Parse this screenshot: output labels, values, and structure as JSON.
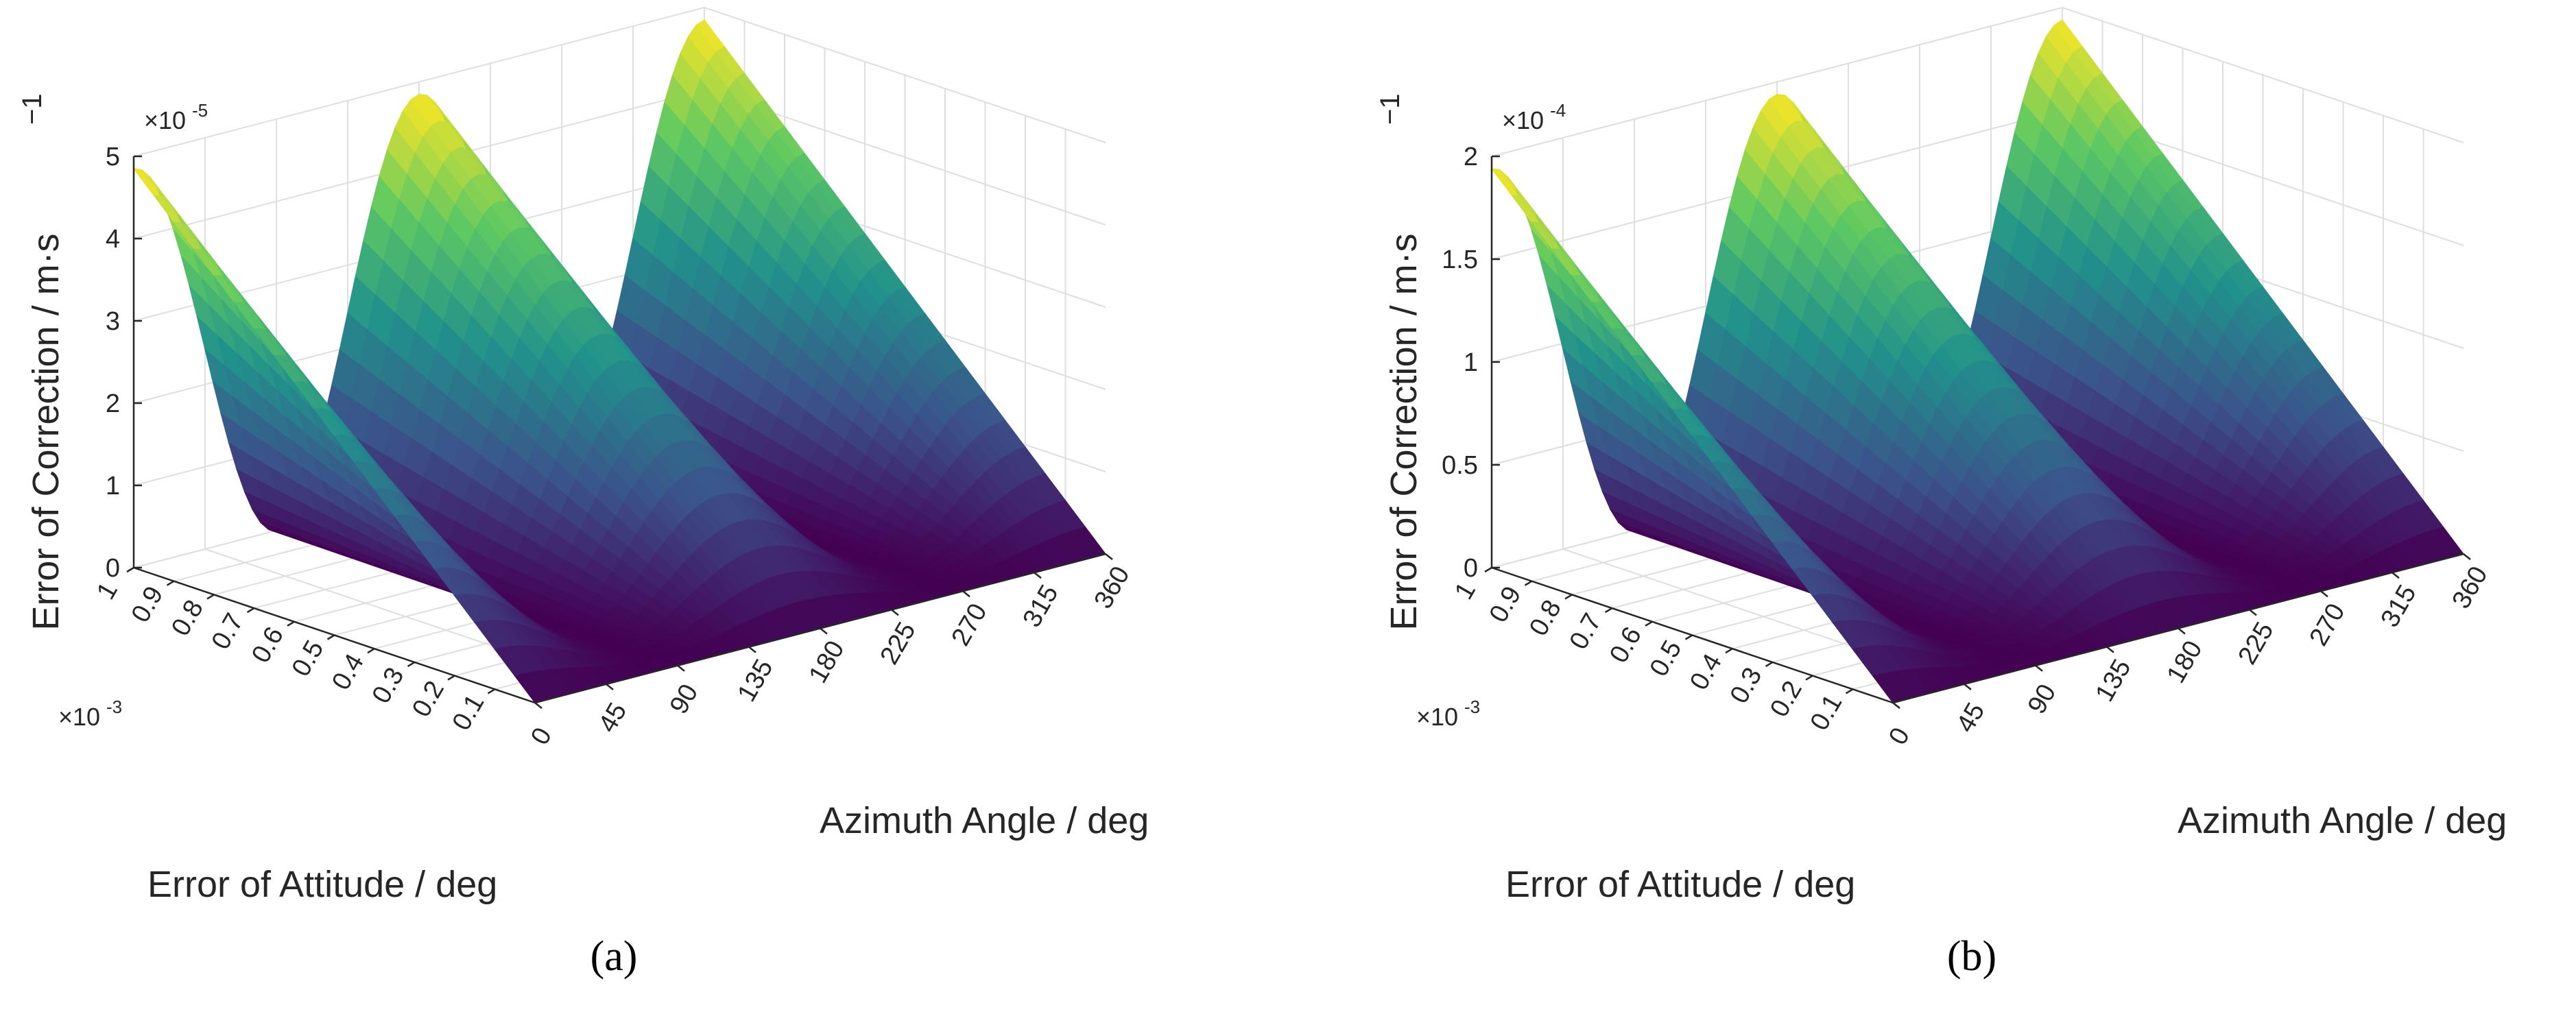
{
  "colormap": [
    "#440154",
    "#3b528b",
    "#21918c",
    "#5ec962",
    "#fde725"
  ],
  "chart_data": [
    {
      "type": "surface",
      "panel_label": "(a)",
      "xlabel": "Azimuth Angle / deg",
      "ylabel": "Error of Attitude / deg",
      "zlabel": "Error of Correction / m·s",
      "zlabel_exp": "−1",
      "x_ticks": [
        "0",
        "45",
        "90",
        "135",
        "180",
        "225",
        "270",
        "315",
        "360"
      ],
      "y_ticks": [
        "0.1",
        "0.2",
        "0.3",
        "0.4",
        "0.5",
        "0.6",
        "0.7",
        "0.8",
        "0.9",
        "1"
      ],
      "y_multiplier": "×10",
      "y_multiplier_exp": "-3",
      "z_ticks": [
        "0",
        "1",
        "2",
        "3",
        "4",
        "5"
      ],
      "z_multiplier": "×10",
      "z_multiplier_exp": "-5",
      "xlim": [
        0,
        360
      ],
      "ylim": [
        0,
        0.001
      ],
      "zlim": [
        0,
        5e-05
      ],
      "zmax": 4.85e-05,
      "function": "z = zmax · (y / 0.001) · (0.5 + 0.5·cos(2·azimuth))",
      "grid": true
    },
    {
      "type": "surface",
      "panel_label": "(b)",
      "xlabel": "Azimuth Angle / deg",
      "ylabel": "Error of Attitude / deg",
      "zlabel": "Error of Correction / m·s",
      "zlabel_exp": "−1",
      "x_ticks": [
        "0",
        "45",
        "90",
        "135",
        "180",
        "225",
        "270",
        "315",
        "360"
      ],
      "y_ticks": [
        "0.1",
        "0.2",
        "0.3",
        "0.4",
        "0.5",
        "0.6",
        "0.7",
        "0.8",
        "0.9",
        "1"
      ],
      "y_multiplier": "×10",
      "y_multiplier_exp": "-3",
      "z_ticks": [
        "0",
        "0.5",
        "1",
        "1.5",
        "2"
      ],
      "z_multiplier": "×10",
      "z_multiplier_exp": "-4",
      "xlim": [
        0,
        360
      ],
      "ylim": [
        0,
        0.001
      ],
      "zlim": [
        0,
        0.0002
      ],
      "zmax": 0.000194,
      "function": "z = zmax · (y / 0.001) · (0.5 + 0.5·cos(2·azimuth))",
      "grid": true
    }
  ]
}
